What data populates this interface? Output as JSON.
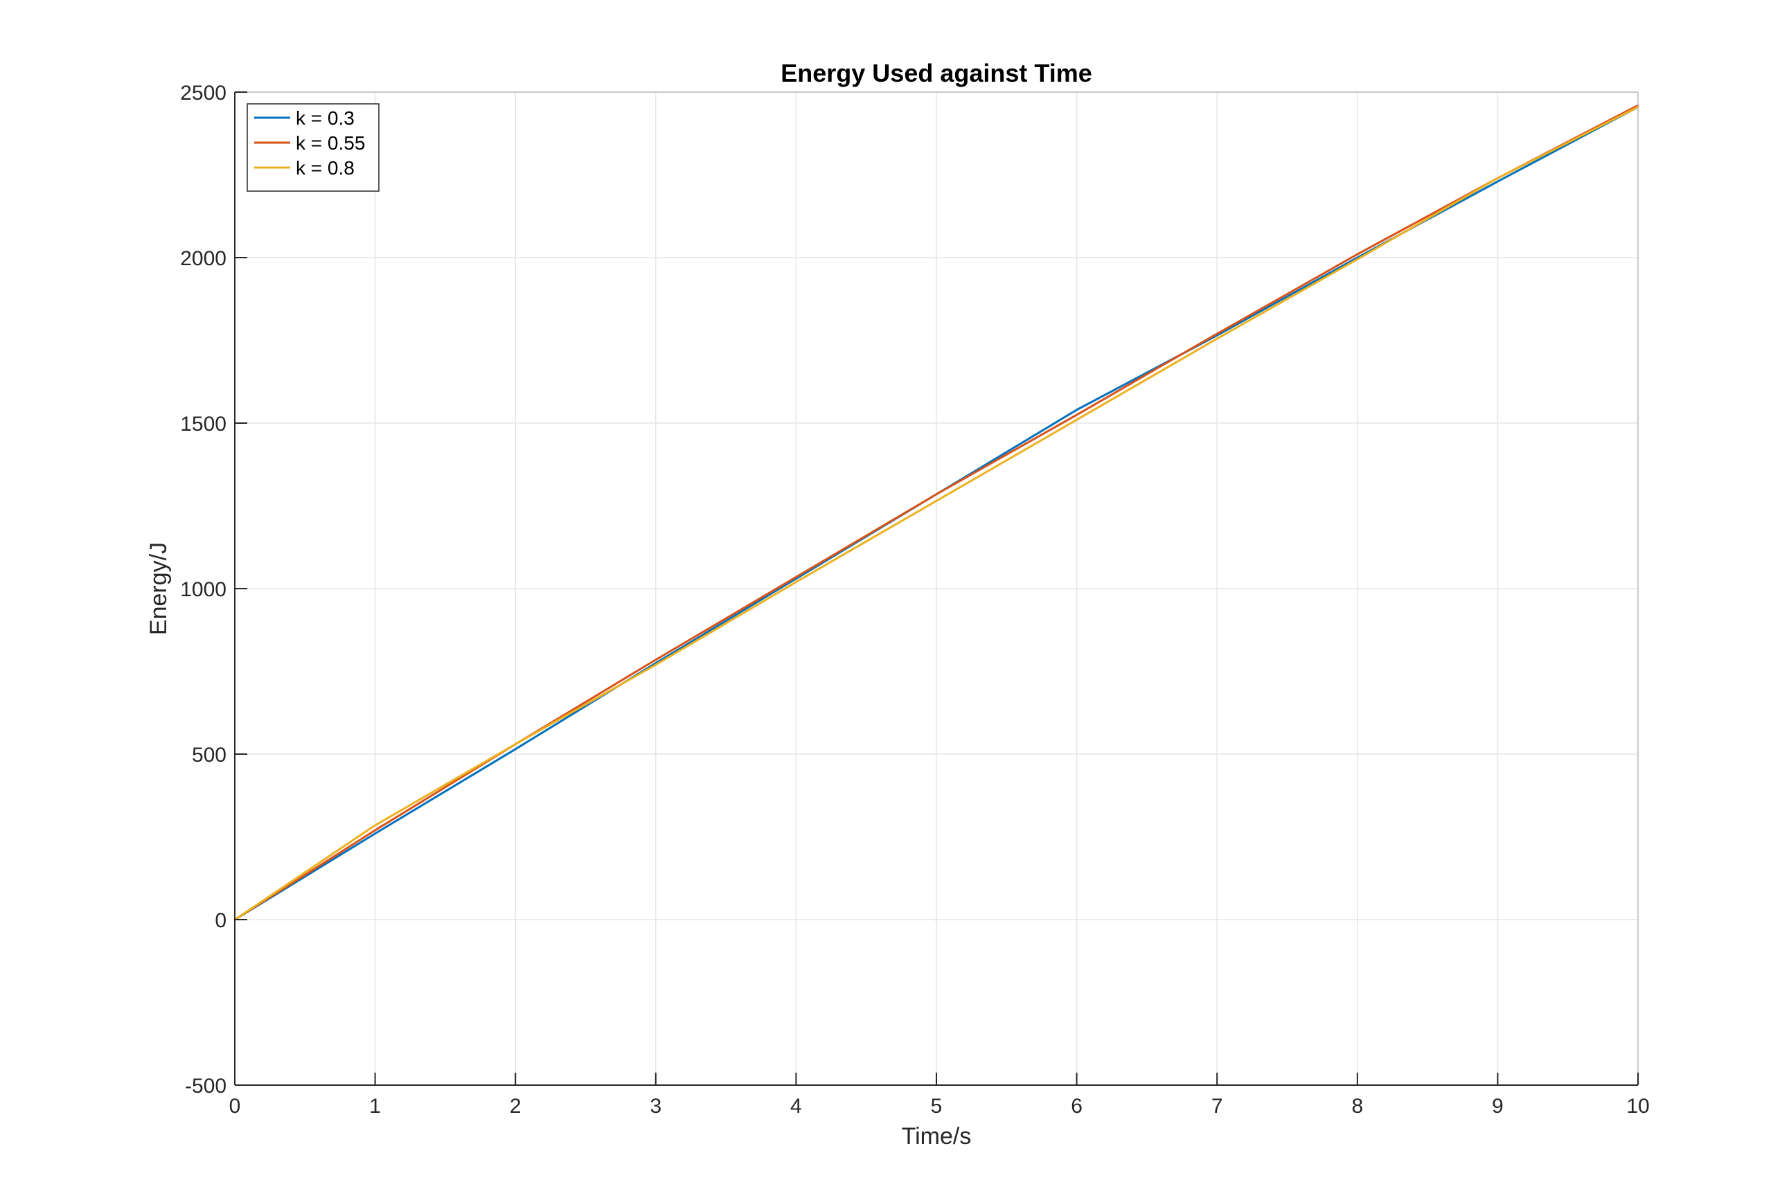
{
  "chart_data": {
    "type": "line",
    "title": "Energy Used against Time",
    "xlabel": "Time/s",
    "ylabel": "Energy/J",
    "xlim": [
      0,
      10
    ],
    "ylim": [
      -500,
      2500
    ],
    "xticks": [
      0,
      1,
      2,
      3,
      4,
      5,
      6,
      7,
      8,
      9,
      10
    ],
    "yticks": [
      -500,
      0,
      500,
      1000,
      1500,
      2000,
      2500
    ],
    "xtick_labels": [
      "0",
      "1",
      "2",
      "3",
      "4",
      "5",
      "6",
      "7",
      "8",
      "9",
      "10"
    ],
    "ytick_labels": [
      "-500",
      "0",
      "500",
      "1000",
      "1500",
      "2000",
      "2500"
    ],
    "grid": true,
    "legend_position": "top-left",
    "series": [
      {
        "name": "k = 0.3",
        "color": "#0072BD",
        "x": [
          0,
          1,
          2,
          3,
          4,
          5,
          6,
          7,
          8,
          9,
          10
        ],
        "y": [
          0,
          260,
          515,
          775,
          1030,
          1285,
          1540,
          1765,
          2000,
          2230,
          2455
        ]
      },
      {
        "name": "k = 0.55",
        "color": "#D95319",
        "x": [
          0,
          1,
          2,
          3,
          4,
          5,
          6,
          7,
          8,
          9,
          10
        ],
        "y": [
          0,
          270,
          530,
          785,
          1035,
          1285,
          1525,
          1770,
          2010,
          2240,
          2460
        ]
      },
      {
        "name": "k = 0.8",
        "color": "#EDB120",
        "x": [
          0,
          1,
          2,
          3,
          4,
          5,
          6,
          7,
          8,
          9,
          10
        ],
        "y": [
          0,
          285,
          530,
          770,
          1020,
          1265,
          1510,
          1755,
          1995,
          2240,
          2455
        ]
      }
    ]
  }
}
